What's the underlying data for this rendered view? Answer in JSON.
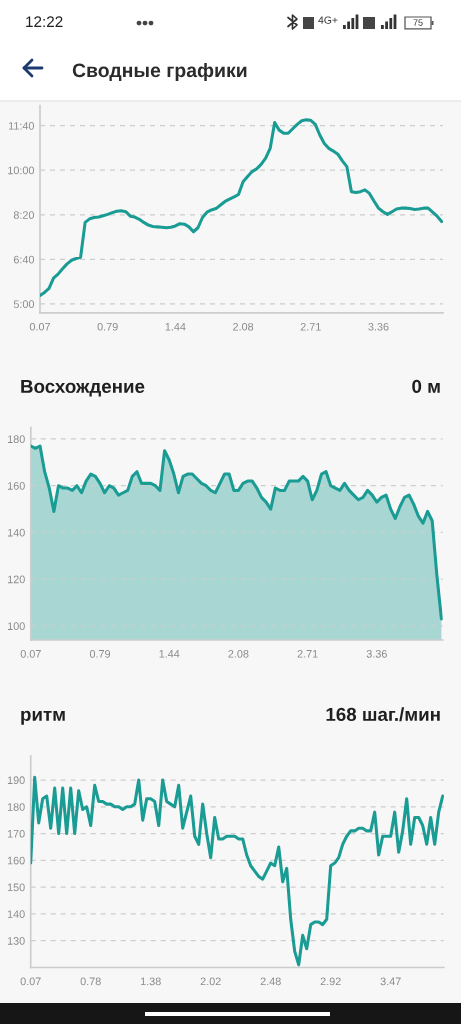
{
  "chart_data": [
    {
      "type": "line",
      "title": "Сводные графики",
      "annotations": [
        "12:22",
        "4G+",
        "75"
      ],
      "categories": [
        "0.07",
        null,
        null,
        null,
        null,
        null,
        null,
        null,
        null,
        null,
        null,
        null,
        null,
        null,
        null,
        "0.79",
        null,
        null,
        null,
        null,
        null,
        null,
        null,
        null,
        null,
        null,
        null,
        null,
        null,
        null,
        "1.44",
        null,
        null,
        null,
        null,
        null,
        null,
        null,
        null,
        null,
        null,
        null,
        null,
        null,
        null,
        "2.08",
        null,
        null,
        null,
        null,
        null,
        null,
        null,
        null,
        null,
        null,
        null,
        null,
        null,
        null,
        "2.71",
        null,
        null,
        null,
        null,
        null,
        null,
        null,
        null,
        null,
        null,
        null,
        null,
        null,
        null,
        "3.36",
        null,
        null,
        null,
        null,
        null,
        null,
        null,
        null,
        null,
        null,
        null,
        null,
        null,
        null
      ],
      "series": [
        {
          "color": "#1a9c94",
          "values": [
            319,
            326,
            335,
            358,
            367,
            379,
            390,
            398,
            402,
            405,
            483,
            491,
            494,
            495,
            498,
            501,
            505,
            508,
            509,
            507,
            497,
            495,
            490,
            483,
            477,
            474,
            473,
            472,
            471,
            472,
            475,
            480,
            479,
            473,
            462,
            471,
            494,
            506,
            511,
            514,
            522,
            530,
            535,
            540,
            546,
            574,
            586,
            597,
            603,
            613,
            627,
            649,
            707,
            690,
            683,
            683,
            693,
            703,
            711,
            713,
            712,
            703,
            679,
            660,
            649,
            643,
            636,
            621,
            608,
            552,
            550,
            552,
            556,
            548,
            531,
            515,
            507,
            501,
            507,
            513,
            515,
            515,
            514,
            512,
            513,
            515,
            515,
            506,
            497,
            485
          ]
        }
      ],
      "ylim": [
        280,
        745
      ],
      "yticks": [
        {
          "value": 300,
          "label": "5:00"
        },
        {
          "value": 400,
          "label": "6:40"
        },
        {
          "value": 500,
          "label": "8:20"
        },
        {
          "value": 600,
          "label": "10:00"
        },
        {
          "value": 700,
          "label": "11:40"
        }
      ],
      "grid": "y"
    },
    {
      "type": "area",
      "title": "Восхождение",
      "annotations": [
        "0 м"
      ],
      "categories": [
        "0.07",
        null,
        null,
        null,
        null,
        null,
        null,
        null,
        null,
        null,
        null,
        null,
        null,
        null,
        null,
        "0.79",
        null,
        null,
        null,
        null,
        null,
        null,
        null,
        null,
        null,
        null,
        null,
        null,
        null,
        null,
        "1.44",
        null,
        null,
        null,
        null,
        null,
        null,
        null,
        null,
        null,
        null,
        null,
        null,
        null,
        null,
        "2.08",
        null,
        null,
        null,
        null,
        null,
        null,
        null,
        null,
        null,
        null,
        null,
        null,
        null,
        null,
        "2.71",
        null,
        null,
        null,
        null,
        null,
        null,
        null,
        null,
        null,
        null,
        null,
        null,
        null,
        null,
        "3.36",
        null,
        null,
        null,
        null,
        null,
        null,
        null,
        null,
        null,
        null,
        null,
        null,
        null,
        null
      ],
      "series": [
        {
          "color": "#1a9c94",
          "values": [
            177,
            176,
            177,
            166,
            159,
            149,
            160,
            159,
            159,
            158,
            160,
            157,
            162,
            165,
            164,
            161,
            157,
            160,
            159,
            156,
            157,
            158,
            164,
            166,
            161,
            161,
            161,
            160,
            158,
            175,
            171,
            165,
            157,
            164,
            165,
            165,
            163,
            161,
            160,
            158,
            157,
            161,
            165,
            165,
            158,
            158,
            161,
            162,
            162,
            159,
            155,
            153,
            150,
            159,
            158,
            158,
            162,
            162,
            162,
            164,
            162,
            154,
            158,
            165,
            166,
            160,
            159,
            158,
            161,
            158,
            156,
            154,
            155,
            158,
            156,
            153,
            155,
            156,
            150,
            146,
            151,
            155,
            156,
            152,
            147,
            144,
            149,
            145,
            122,
            103
          ]
        }
      ],
      "ylim": [
        94,
        185
      ],
      "yticks": [
        100,
        120,
        140,
        160,
        180
      ],
      "grid": "y"
    },
    {
      "type": "line",
      "title": "ритм",
      "annotations": [
        "168 шаг./мин"
      ],
      "categories": [
        "0.07",
        null,
        null,
        null,
        null,
        null,
        null,
        null,
        null,
        null,
        null,
        null,
        null,
        null,
        null,
        "0.78",
        null,
        null,
        null,
        null,
        null,
        null,
        null,
        null,
        null,
        null,
        null,
        null,
        null,
        null,
        "1.38",
        null,
        null,
        null,
        null,
        null,
        null,
        null,
        null,
        null,
        null,
        null,
        null,
        null,
        null,
        "2.02",
        null,
        null,
        null,
        null,
        null,
        null,
        null,
        null,
        null,
        null,
        null,
        null,
        null,
        null,
        "2.48",
        null,
        null,
        null,
        null,
        null,
        null,
        null,
        null,
        null,
        null,
        null,
        null,
        null,
        null,
        "2.92",
        null,
        null,
        null,
        null,
        null,
        null,
        null,
        null,
        null,
        null,
        null,
        null,
        null,
        null,
        "3.47",
        null,
        null,
        null,
        null,
        null,
        null,
        null,
        null,
        null,
        null,
        null,
        null,
        null
      ],
      "series": [
        {
          "color": "#1a9c94",
          "values": [
            159,
            191,
            174,
            183,
            184,
            172,
            187,
            170,
            187,
            170,
            187,
            170,
            186,
            179,
            180,
            173,
            188,
            182,
            182,
            181,
            181,
            180,
            180,
            179,
            180,
            180,
            181,
            190,
            175,
            183,
            183,
            182,
            173,
            190,
            182,
            181,
            180,
            188,
            172,
            178,
            184,
            169,
            166,
            181,
            170,
            161,
            176,
            168,
            168,
            169,
            169,
            169,
            168,
            168,
            162,
            158,
            156,
            154,
            153,
            156,
            159,
            158,
            165,
            152,
            157,
            138,
            126,
            121,
            132,
            127,
            136,
            137,
            137,
            136,
            138,
            158,
            159,
            161,
            166,
            169,
            171,
            171,
            172,
            172,
            171,
            171,
            178,
            162,
            169,
            169,
            169,
            178,
            163,
            171,
            183,
            166,
            176,
            176,
            173,
            166,
            176,
            166,
            178,
            184
          ]
        }
      ],
      "ylim": [
        120,
        199
      ],
      "yticks": [
        130,
        140,
        150,
        160,
        170,
        180,
        190
      ],
      "grid": "y"
    }
  ]
}
